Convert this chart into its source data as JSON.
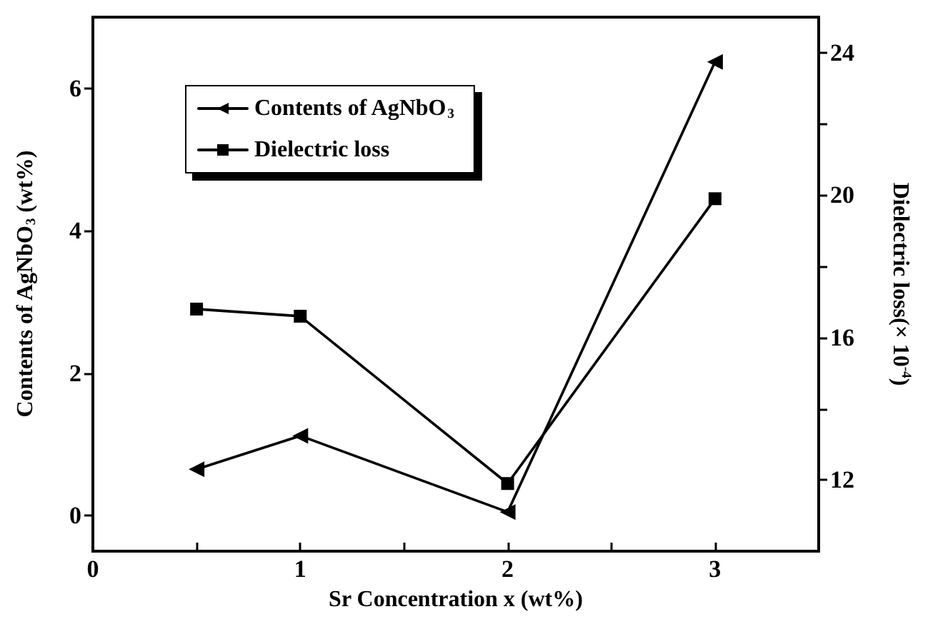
{
  "chart_data": {
    "type": "line",
    "xlabel": "Sr Concentration x (wt%)",
    "ylabel": "Contents of AgNbO$_{3}$ (wt%)",
    "y2label": "Dielectric loss(× 10$^{-4}$)",
    "x": [
      0.5,
      1,
      2,
      3
    ],
    "series": [
      {
        "name": "Contents of AgNbO$_{3}$",
        "color": "#000000",
        "marker": "triangle",
        "values": [
          0.65,
          1.12,
          0.05,
          6.37
        ]
      },
      {
        "name": "Dielectric loss",
        "color": "#000000",
        "marker": "square",
        "axis": "y2",
        "values": [
          16.8,
          16.6,
          11.9,
          19.9
        ]
      }
    ],
    "xlim": [
      0,
      3.5
    ],
    "xticks": [
      0,
      {
        "value": 0.5,
        "label": null
      },
      1,
      {
        "value": 1.5,
        "label": null
      },
      2,
      {
        "value": 2.5,
        "label": null
      },
      3
    ],
    "ylim": [
      -0.5,
      7
    ],
    "yticks": [
      0,
      2,
      4,
      6
    ],
    "y2lim": [
      10,
      25
    ],
    "y2ticks": [
      12,
      {
        "value": 14,
        "label": null
      },
      16,
      {
        "value": 18,
        "label": null
      },
      20,
      {
        "value": 22,
        "label": null
      },
      24
    ],
    "grid": false,
    "legend": "top left",
    "line_style": "solid"
  }
}
